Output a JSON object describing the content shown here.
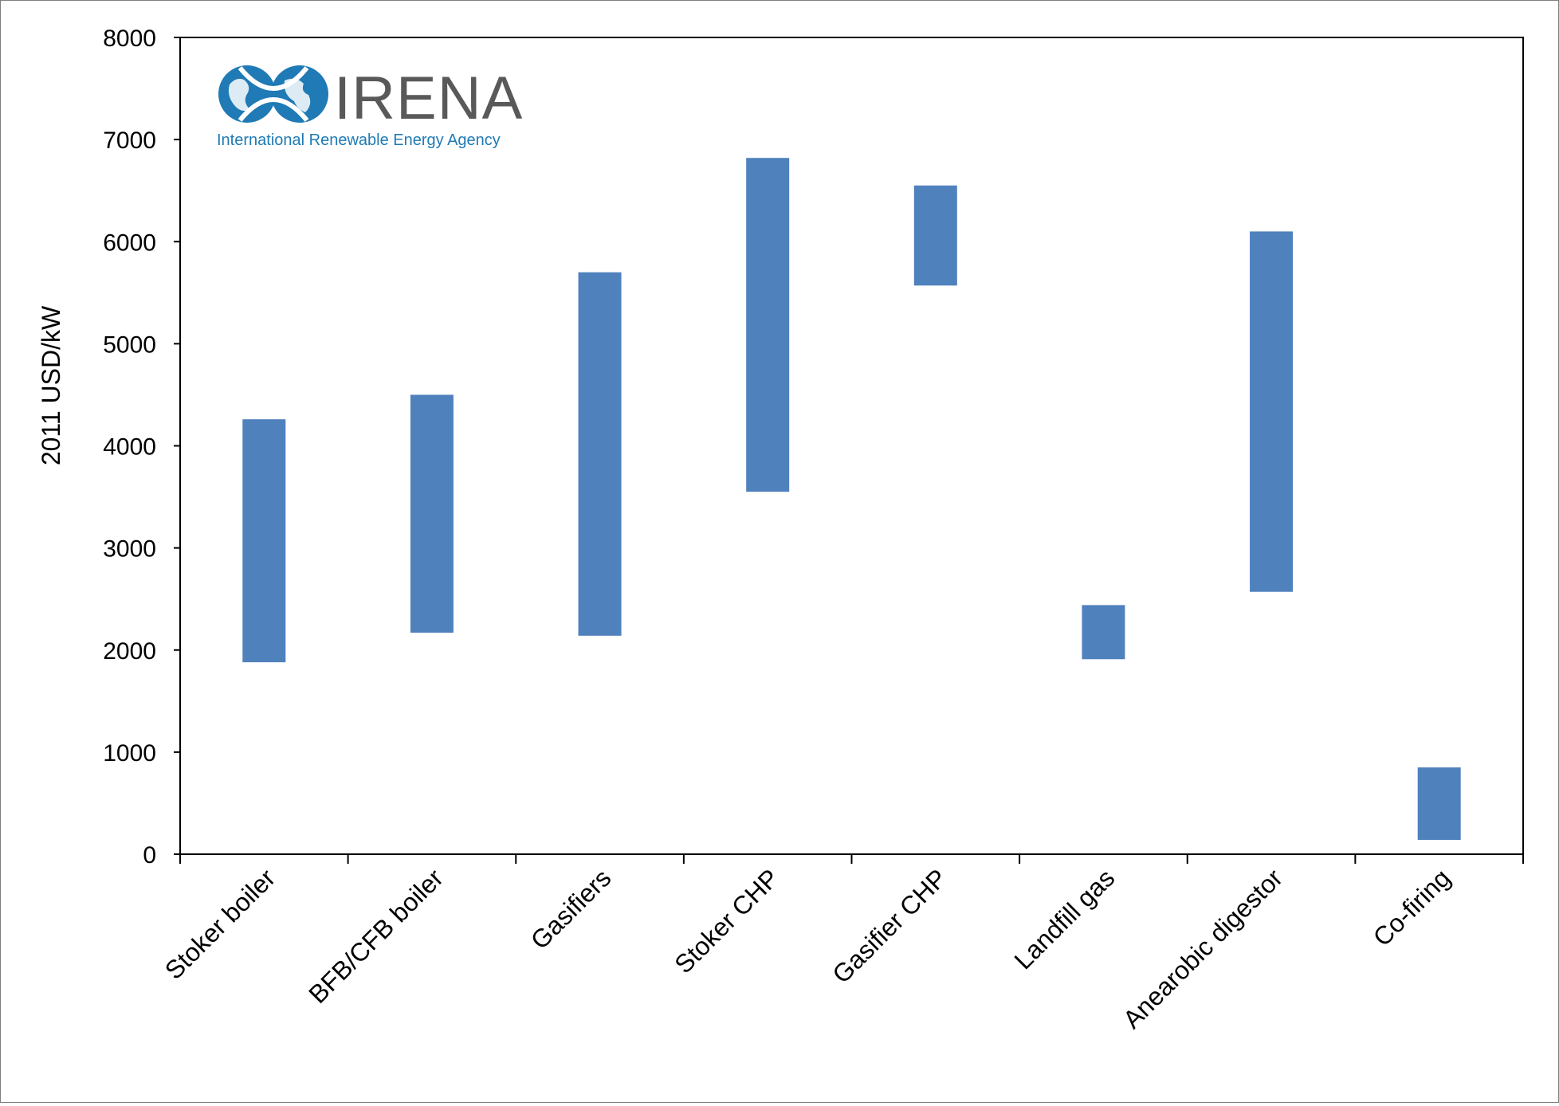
{
  "logo": {
    "name": "IRENA",
    "tagline": "International Renewable Energy Agency"
  },
  "colors": {
    "bar": "#4f81bd",
    "logo_text": "#595959",
    "logo_blue": "#1f7ab5",
    "axis": "#000000"
  },
  "chart_data": {
    "type": "bar",
    "subtype": "floating-range",
    "title": "",
    "xlabel": "",
    "ylabel": "2011 USD/kW",
    "ylim": [
      0,
      8000
    ],
    "yticks": [
      0,
      1000,
      2000,
      3000,
      4000,
      5000,
      6000,
      7000,
      8000
    ],
    "grid": false,
    "legend": "none",
    "categories": [
      "Stoker boiler",
      "BFB/CFB boiler",
      "Gasifiers",
      "Stoker CHP",
      "Gasifier CHP",
      "Landfill gas",
      "Anearobic digestor",
      "Co-firing"
    ],
    "series": [
      {
        "low": [
          1880,
          2170,
          2140,
          3550,
          5570,
          1910,
          2570,
          140
        ],
        "high": [
          4260,
          4500,
          5700,
          6820,
          6550,
          2440,
          6100,
          850
        ]
      }
    ]
  }
}
